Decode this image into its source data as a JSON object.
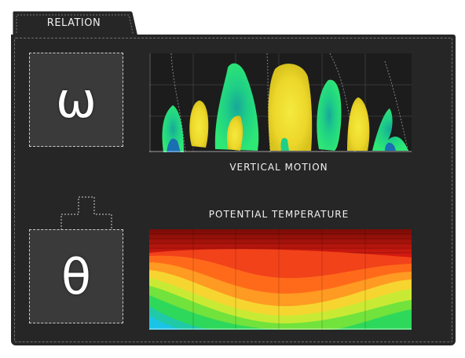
{
  "tab": {
    "label": "RELATION"
  },
  "symbols": {
    "top": "ω",
    "operator": "plus-icon",
    "bottom": "θ"
  },
  "charts": {
    "vertical_motion": {
      "title": "VERTICAL MOTION"
    },
    "potential_temperature": {
      "title": "POTENTIAL TEMPERATURE"
    }
  },
  "colors": {
    "panel": "#262626",
    "symbol_box": "#3a3a3a",
    "green": "#22dd77",
    "teal": "#1ab39a",
    "yellow": "#f2e23a",
    "red": "#e8261a",
    "orange": "#ff7a1a",
    "cyan": "#19c4e6"
  }
}
